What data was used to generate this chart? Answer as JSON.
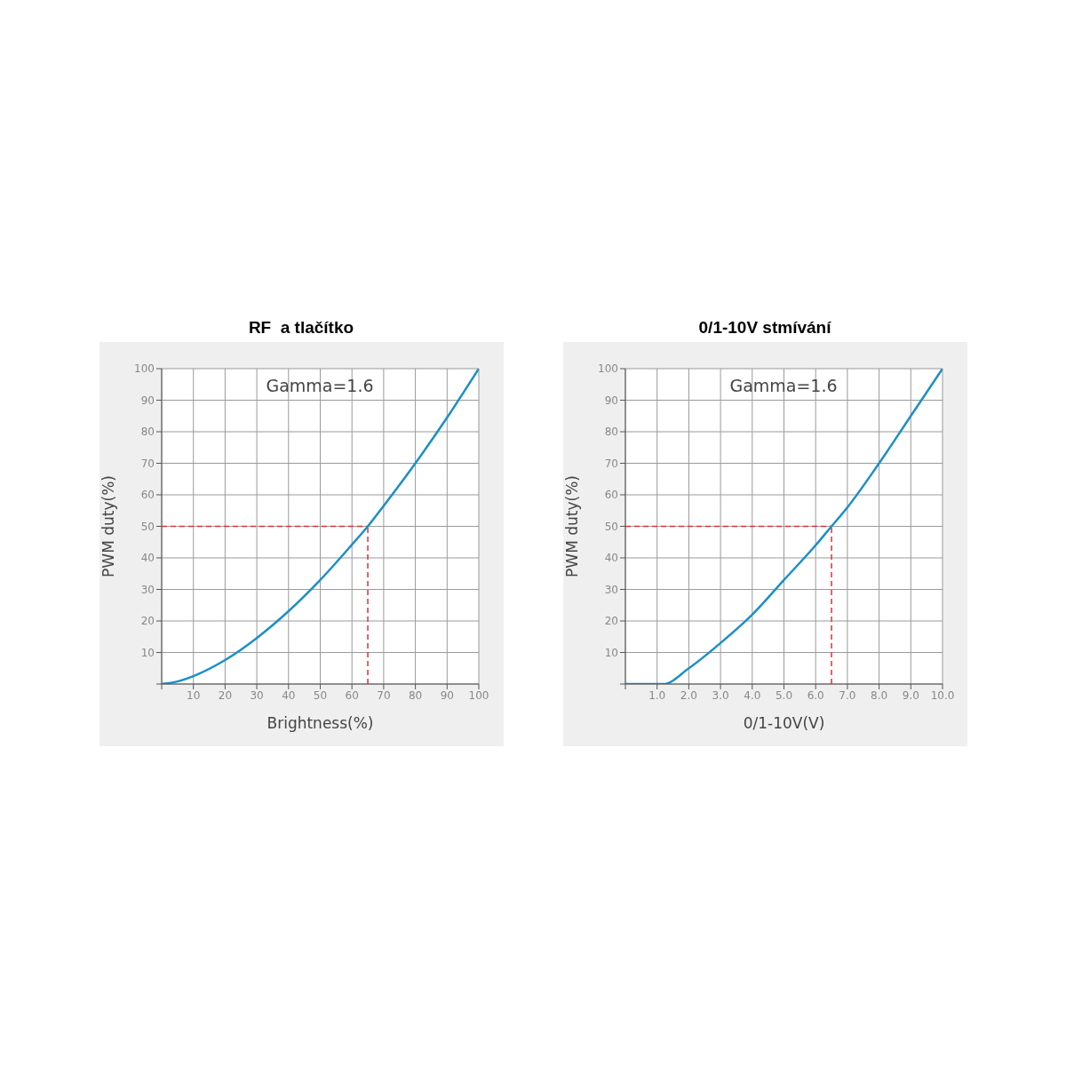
{
  "chart_data": [
    {
      "type": "line",
      "title": "RF  a tlačítko",
      "xlabel": "Brightness(%)",
      "ylabel": "PWM duty(%)",
      "annotations": [
        "Gamma=1.6"
      ],
      "x": [
        0,
        5,
        10,
        20,
        30,
        40,
        50,
        60,
        65,
        70,
        80,
        90,
        100
      ],
      "series": [
        {
          "color": "#1b8fc6",
          "values": [
            0,
            0.8,
            2.5,
            7.6,
            14.6,
            23.1,
            33,
            44.2,
            50,
            56.5,
            70,
            84.5,
            100
          ]
        }
      ],
      "xlim": [
        0,
        100
      ],
      "ylim": [
        0,
        100
      ],
      "xticks": [
        {
          "value": 0,
          "label": null
        },
        10,
        20,
        30,
        40,
        50,
        60,
        70,
        80,
        90,
        100
      ],
      "yticks": [
        {
          "value": 0,
          "label": null
        },
        10,
        20,
        30,
        40,
        50,
        60,
        70,
        80,
        90,
        100
      ],
      "ref_lines": [
        {
          "axis": "y",
          "value": 50,
          "color": "#d9333a",
          "line_style": "dashed"
        },
        {
          "axis": "x",
          "value": 65,
          "color": "#d9333a",
          "line_style": "dashed"
        }
      ],
      "grid": true,
      "marker": "none",
      "line_style": "solid",
      "legend": false
    },
    {
      "type": "line",
      "title": "0/1-10V stmívání",
      "xlabel": "0/1-10V(V)",
      "ylabel": "PWM duty(%)",
      "annotations": [
        "Gamma=1.6"
      ],
      "x": [
        0,
        1.2,
        2,
        3,
        4,
        5,
        6,
        6.5,
        7,
        8,
        9,
        10
      ],
      "series": [
        {
          "color": "#1b8fc6",
          "values": [
            0,
            0,
            5,
            13,
            22,
            33,
            44,
            50,
            56,
            70,
            85,
            100
          ]
        }
      ],
      "xlim": [
        0,
        10
      ],
      "ylim": [
        0,
        100
      ],
      "xticks": [
        {
          "value": 0,
          "label": null
        },
        {
          "value": 1,
          "label": "1.0"
        },
        {
          "value": 2,
          "label": "2.0"
        },
        {
          "value": 3,
          "label": "3.0"
        },
        {
          "value": 4,
          "label": "4.0"
        },
        {
          "value": 5,
          "label": "5.0"
        },
        {
          "value": 6,
          "label": "6.0"
        },
        {
          "value": 7,
          "label": "7.0"
        },
        {
          "value": 8,
          "label": "8.0"
        },
        {
          "value": 9,
          "label": "9.0"
        },
        {
          "value": 10,
          "label": "10.0"
        }
      ],
      "yticks": [
        {
          "value": 0,
          "label": null
        },
        10,
        20,
        30,
        40,
        50,
        60,
        70,
        80,
        90,
        100
      ],
      "ref_lines": [
        {
          "axis": "y",
          "value": 50,
          "color": "#d9333a",
          "line_style": "dashed"
        },
        {
          "axis": "x",
          "value": 6.5,
          "color": "#d9333a",
          "line_style": "dashed"
        }
      ],
      "grid": true,
      "marker": "none",
      "line_style": "solid",
      "legend": false
    }
  ]
}
